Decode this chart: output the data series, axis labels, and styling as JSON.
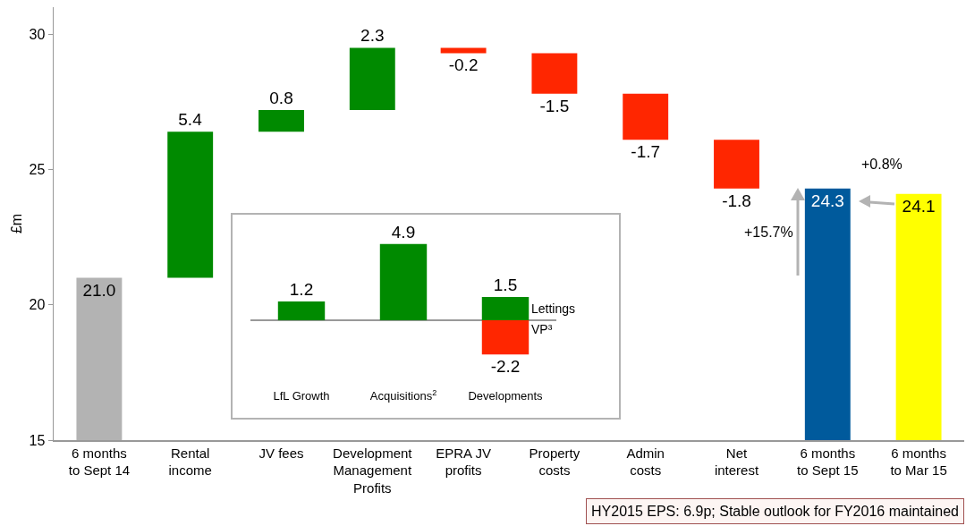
{
  "chart_data": [
    {
      "type": "bar",
      "ylabel": "£m",
      "categories": [
        "6 months to Sept 14",
        "Rental income",
        "JV fees",
        "Development Management Profits",
        "EPRA JV profits",
        "Property costs",
        "Admin costs",
        "Net interest",
        "6 months to Sept 15",
        "6 months to Mar 15"
      ],
      "values": [
        21.0,
        5.4,
        0.8,
        2.3,
        -0.2,
        -1.5,
        -1.7,
        -1.8,
        24.3,
        24.1
      ],
      "base": [
        0,
        21.0,
        26.4,
        27.2,
        29.5,
        29.3,
        27.8,
        26.1,
        0,
        0
      ],
      "value_labels": [
        "21.0",
        "5.4",
        "0.8",
        "2.3",
        "-0.2",
        "-1.5",
        "-1.7",
        "-1.8",
        "24.3",
        "24.1"
      ],
      "colors": [
        "#b3b3b3",
        "#008a00",
        "#008a00",
        "#008a00",
        "#ff2600",
        "#ff2600",
        "#ff2600",
        "#ff2600",
        "#005a9c",
        "#ffff00"
      ],
      "ylim": [
        15,
        31
      ],
      "yticks": [
        15,
        20,
        25,
        30
      ],
      "grid": false,
      "annotations": [
        "+15.7%",
        "+0.8%",
        "HY2015 EPS: 6.9p; Stable outlook for FY2016 maintained"
      ]
    },
    {
      "type": "bar",
      "stacked": true,
      "categories": [
        "LfL Growth",
        "Acquisitions$^{2}$",
        "Developments"
      ],
      "series": [
        {
          "color": "#008a00",
          "values": [
            1.2,
            4.9,
            1.5
          ]
        },
        {
          "color": "#ff2600",
          "values": [
            null,
            null,
            -2.2
          ]
        }
      ],
      "tick_labels": "x",
      "grid": false,
      "data_labels": true,
      "annotations": [
        "Lettings",
        "VP³"
      ]
    }
  ]
}
